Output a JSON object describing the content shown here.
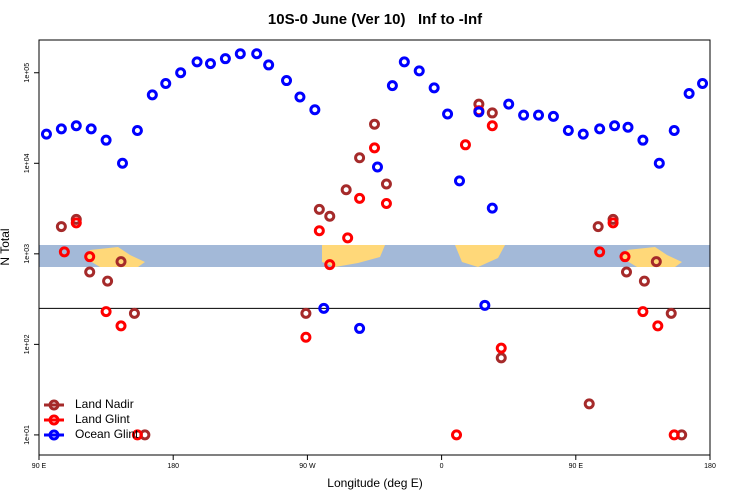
{
  "chart_data": {
    "type": "scatter",
    "title": "10S-0 June (Ver 10)   Inf to -Inf",
    "x_label": "Longitude (deg E)",
    "y_label": "N Total",
    "xlim": [
      90,
      540
    ],
    "ylim": [
      6,
      230000
    ],
    "log_y": true,
    "legend": "bottom-left",
    "hline": 250,
    "xticks": [
      {
        "value": 90,
        "label": "90 E"
      },
      180,
      {
        "value": 270,
        "label": "90 W"
      },
      {
        "value": 360,
        "label": "0"
      },
      {
        "value": 450,
        "label": "90 E"
      },
      {
        "value": 540,
        "label": "180"
      }
    ],
    "yticks": [
      {
        "value": 10,
        "label": "1e+01"
      },
      {
        "value": 100,
        "label": "1e+02"
      },
      {
        "value": 1000,
        "label": "1e+03"
      },
      {
        "value": 10000,
        "label": "1e+04"
      },
      {
        "value": 100000,
        "label": "1e+05"
      }
    ],
    "series": [
      {
        "name": "Land Nadir",
        "color": "#a52a2a",
        "x": [
          105,
          115,
          124,
          136,
          145,
          154,
          161,
          269,
          278,
          285,
          296,
          305,
          315,
          323,
          385,
          394,
          400,
          459,
          465,
          475,
          484,
          496,
          504,
          514,
          521
        ],
        "values": [
          2000,
          2400,
          630,
          500,
          820,
          220,
          10,
          220,
          3100,
          2600,
          5100,
          11500,
          27000,
          5900,
          45000,
          36000,
          71,
          22,
          2000,
          2400,
          630,
          500,
          820,
          220,
          10
        ]
      },
      {
        "name": "Land Glint",
        "color": "#ff0000",
        "x": [
          107,
          115,
          124,
          135,
          145,
          156,
          269,
          278,
          285,
          297,
          305,
          315,
          323,
          370,
          376,
          385,
          394,
          400,
          466,
          475,
          483,
          495,
          505,
          516
        ],
        "values": [
          1050,
          2200,
          930,
          230,
          160,
          10,
          120,
          1800,
          760,
          1500,
          4100,
          14800,
          3600,
          10,
          16000,
          38000,
          26000,
          91,
          1050,
          2200,
          930,
          230,
          160,
          10
        ]
      },
      {
        "name": "Ocean Glint",
        "color": "#0000ff",
        "x": [
          95,
          105,
          115,
          125,
          135,
          146,
          156,
          166,
          175,
          185,
          196,
          205,
          215,
          225,
          236,
          244,
          256,
          265,
          275,
          281,
          305,
          317,
          327,
          335,
          345,
          355,
          364,
          372,
          385,
          389,
          394,
          405,
          415,
          425,
          435,
          445,
          455,
          466,
          476,
          485,
          495,
          506,
          516,
          526,
          535
        ],
        "values": [
          21000,
          24000,
          26000,
          24000,
          18000,
          10000,
          23000,
          57000,
          76000,
          100000,
          132000,
          126000,
          143000,
          162000,
          162000,
          122000,
          82000,
          54000,
          39000,
          250,
          150,
          9100,
          72000,
          132000,
          105000,
          68000,
          35000,
          6400,
          37000,
          270,
          3200,
          45000,
          34000,
          34000,
          33000,
          23000,
          21000,
          24000,
          26000,
          25000,
          18000,
          10000,
          23000,
          59000,
          76000
        ]
      }
    ]
  }
}
